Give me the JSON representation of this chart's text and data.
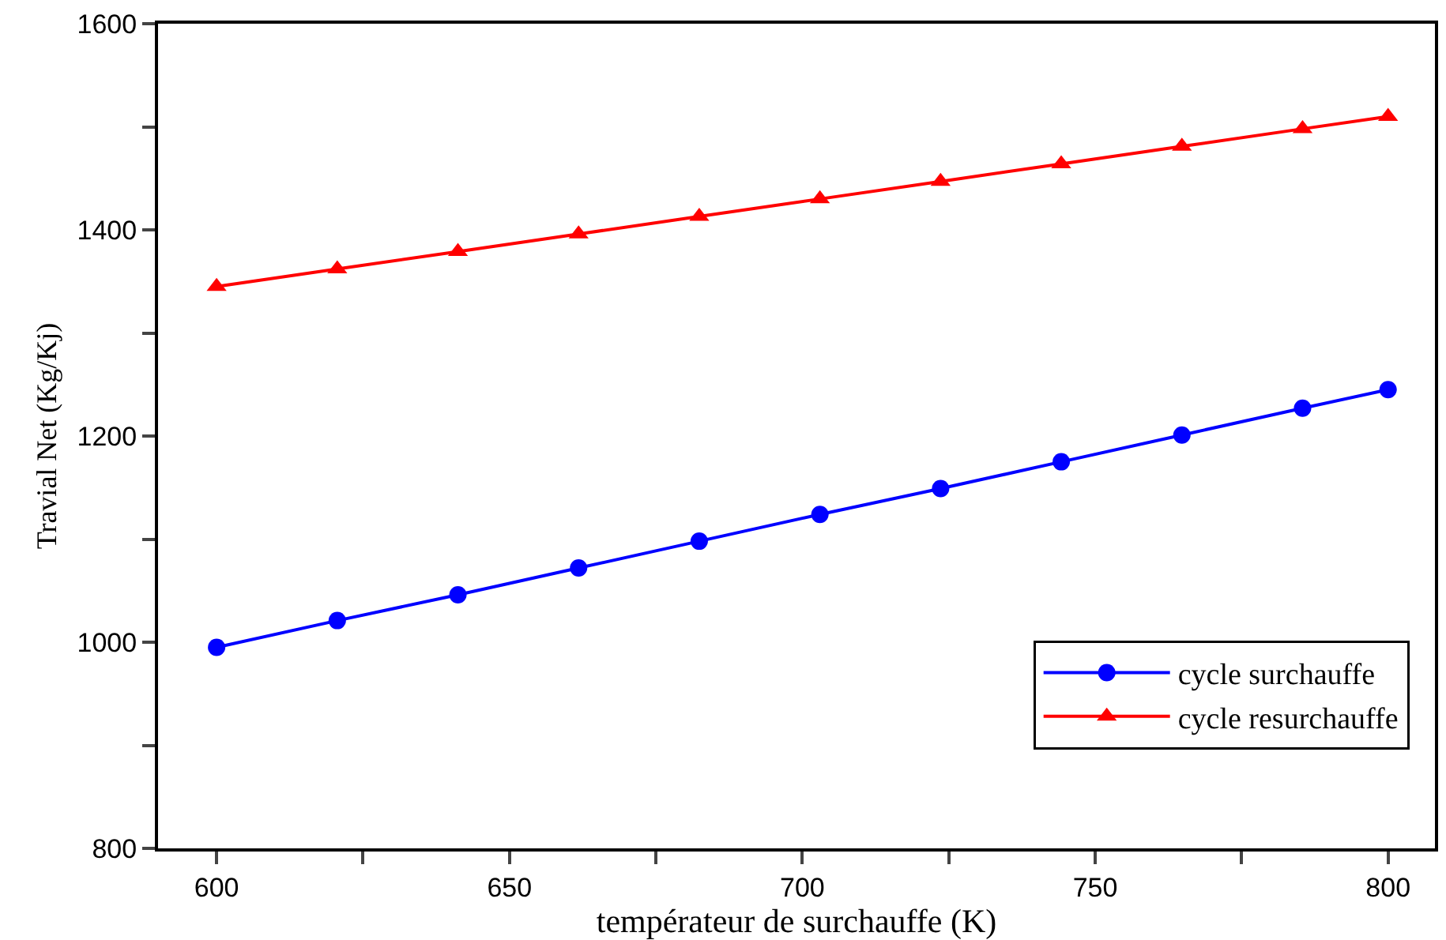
{
  "chart_data": {
    "type": "line",
    "xlabel": "températeur de surchauffe (K)",
    "ylabel": "Travial Net (Kg/Kj)",
    "x": [
      600,
      620.6,
      641.2,
      661.8,
      682.4,
      703,
      723.6,
      744.2,
      764.8,
      785.4,
      800
    ],
    "series": [
      {
        "name": "cycle surchauffe",
        "color": "#0000ff",
        "marker": "circle",
        "values": [
          995,
          1021,
          1046,
          1072,
          1098,
          1124,
          1149,
          1175,
          1201,
          1227,
          1245
        ]
      },
      {
        "name": "cycle resurchauffe",
        "color": "#ff0000",
        "marker": "triangle",
        "values": [
          1345,
          1362,
          1379,
          1396,
          1413,
          1430,
          1447,
          1464,
          1481,
          1498,
          1510
        ]
      }
    ],
    "xlim": [
      590,
      808
    ],
    "ylim": [
      800,
      1600
    ],
    "xticks": [
      600,
      {
        "value": 625,
        "label": null
      },
      650,
      {
        "value": 675,
        "label": null
      },
      700,
      {
        "value": 725,
        "label": null
      },
      750,
      {
        "value": 775,
        "label": null
      },
      800
    ],
    "yticks": [
      800,
      {
        "value": 900,
        "label": null
      },
      1000,
      {
        "value": 1100,
        "label": null
      },
      1200,
      {
        "value": 1300,
        "label": null
      },
      1400,
      {
        "value": 1500,
        "label": null
      },
      1600
    ],
    "legend": "bottom right",
    "line_style": "solid"
  }
}
